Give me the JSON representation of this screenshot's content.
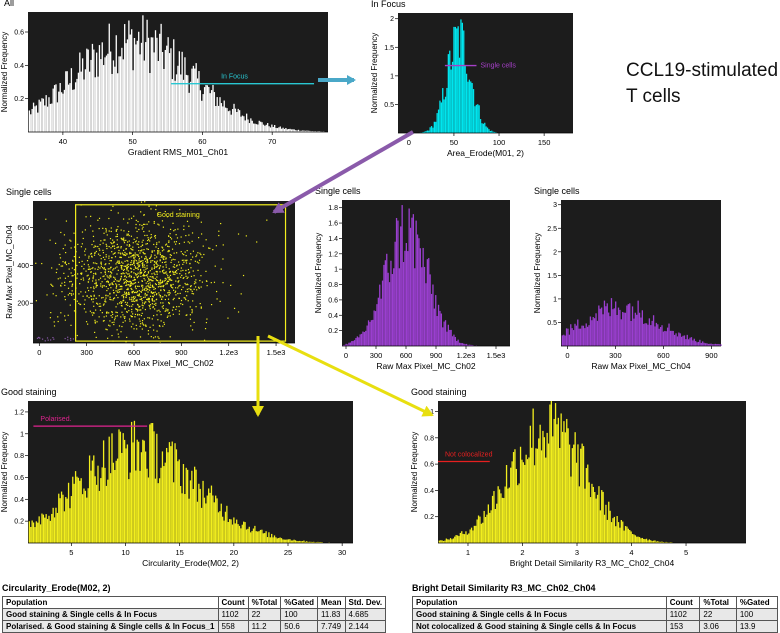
{
  "description": {
    "line1": "CCL19-stimulated",
    "line2": "T cells"
  },
  "chart_data": [
    {
      "id": "h1",
      "type": "histogram",
      "title": "All",
      "xlabel": "Gradient RMS_M01_Ch01",
      "ylabel": "Normalized Frequency",
      "xticks": [
        "40",
        "50",
        "60",
        "70"
      ],
      "xtick_values": [
        40,
        50,
        60,
        70
      ],
      "yticks": [
        "0.2",
        "0.4",
        "0.6"
      ],
      "ytick_values": [
        0.2,
        0.4,
        0.6
      ],
      "xlim": [
        35,
        78
      ],
      "ylim": [
        0,
        0.72
      ],
      "color": "#ffffff",
      "peak_x": 50,
      "peak_y": 0.66,
      "spread": 8.5,
      "gate": {
        "label": "In Focus",
        "x0": 55.5,
        "x1": 76,
        "y": 0.29,
        "color": "#29c7d2"
      }
    },
    {
      "id": "h2",
      "type": "histogram",
      "title": "In Focus",
      "xlabel": "Area_Erode(M01, 2)",
      "ylabel": "Normalized Frequency",
      "xticks": [
        "0",
        "50",
        "100",
        "150"
      ],
      "xtick_values": [
        0,
        50,
        100,
        150
      ],
      "yticks": [
        "0.5",
        "1",
        "1.5",
        "2"
      ],
      "ytick_values": [
        0.5,
        1,
        1.5,
        2
      ],
      "xlim": [
        -12,
        182
      ],
      "ylim": [
        0,
        2.1
      ],
      "color": "#00e5ee",
      "peak_x": 55,
      "peak_y": 2.0,
      "spread": 13,
      "gate": {
        "label": "Single cells",
        "x0": 40,
        "x1": 75,
        "y": 1.18,
        "color": "#a640c8"
      }
    },
    {
      "id": "s1",
      "type": "scatter",
      "title": "Single cells",
      "xlabel": "Raw Max Pixel_MC_Ch02",
      "ylabel": "Raw Max Pixel_MC_Ch04",
      "xticks": [
        "0",
        "300",
        "600",
        "900",
        "1.2e3",
        "1.5e3"
      ],
      "xtick_values": [
        0,
        300,
        600,
        900,
        1200,
        1500
      ],
      "yticks": [
        "200",
        "400",
        "600"
      ],
      "ytick_values": [
        200,
        400,
        600
      ],
      "xlim": [
        -40,
        1620
      ],
      "ylim": [
        -10,
        740
      ],
      "color": "#f2ee1e",
      "center_x": 600,
      "center_y": 340,
      "sd_x": 220,
      "sd_y": 150,
      "points": 1500,
      "gate": {
        "label": "Good staining",
        "x0": 230,
        "x1": 1560,
        "y0": 0,
        "y1": 720,
        "color": "#f2ee1e"
      }
    },
    {
      "id": "h3",
      "type": "histogram",
      "title": "Single cells",
      "xlabel": "Raw Max Pixel_MC_Ch02",
      "ylabel": "Normalized Frequency",
      "xticks": [
        "0",
        "300",
        "600",
        "900",
        "1.2e3",
        "1.5e3"
      ],
      "xtick_values": [
        0,
        300,
        600,
        900,
        1200,
        1500
      ],
      "yticks": [
        "0.2",
        "0.4",
        "0.6",
        "0.8",
        "1",
        "1.2",
        "1.4",
        "1.6",
        "1.8"
      ],
      "ytick_values": [
        0.2,
        0.4,
        0.6,
        0.8,
        1,
        1.2,
        1.4,
        1.6,
        1.8
      ],
      "xlim": [
        -40,
        1640
      ],
      "ylim": [
        0,
        1.9
      ],
      "color": "#9a3fcf",
      "peak_x": 600,
      "peak_y": 1.82,
      "spread": 210
    },
    {
      "id": "h4",
      "type": "histogram",
      "title": "Single cells",
      "xlabel": "Raw Max Pixel_MC_Ch04",
      "ylabel": "Normalized Frequency",
      "xticks": [
        "0",
        "300",
        "600",
        "900"
      ],
      "xtick_values": [
        0,
        300,
        600,
        900
      ],
      "yticks": [
        "0.5",
        "1",
        "1.5",
        "2",
        "2.5",
        "3"
      ],
      "ytick_values": [
        0.5,
        1,
        1.5,
        2,
        2.5,
        3
      ],
      "xlim": [
        -40,
        960
      ],
      "ylim": [
        0,
        3.1
      ],
      "color": "#9a3fcf",
      "peak_x": 330,
      "peak_y": 1.0,
      "spread": 240
    },
    {
      "id": "h5",
      "type": "histogram",
      "title": "Good staining",
      "xlabel": "Circularity_Erode(M02, 2)",
      "ylabel": "Normalized Frequency",
      "xticks": [
        "5",
        "10",
        "15",
        "20",
        "25",
        "30"
      ],
      "xtick_values": [
        5,
        10,
        15,
        20,
        25,
        30
      ],
      "yticks": [
        "0.2",
        "0.4",
        "0.6",
        "0.8",
        "1",
        "1.2"
      ],
      "ytick_values": [
        0.2,
        0.4,
        0.6,
        0.8,
        1,
        1.2
      ],
      "xlim": [
        1,
        31
      ],
      "ylim": [
        0,
        1.3
      ],
      "color": "#f2ee1e",
      "peak_x": 11,
      "peak_y": 1.05,
      "spread": 5.5,
      "gate": {
        "label": "Polarised.",
        "x0": 1.5,
        "x1": 12,
        "y": 1.07,
        "color": "#e0238f"
      }
    },
    {
      "id": "h6",
      "type": "histogram",
      "title": "Good staining",
      "xlabel": "Bright Detail Similarity R3_MC_Ch02_Ch04",
      "ylabel": "Normalized Frequency",
      "xticks": [
        "1",
        "2",
        "3",
        "4",
        "5"
      ],
      "xtick_values": [
        1,
        2,
        3,
        4,
        5
      ],
      "yticks": [
        "0.2",
        "0.4",
        "0.6",
        "0.8",
        "1"
      ],
      "ytick_values": [
        0.2,
        0.4,
        0.6,
        0.8,
        1
      ],
      "xlim": [
        0.45,
        6.1
      ],
      "ylim": [
        0,
        1.08
      ],
      "color": "#f2ee1e",
      "peak_x": 2.45,
      "peak_y": 1.05,
      "spread": 0.7,
      "gate": {
        "label": "Not colocalized",
        "x0": 0.45,
        "x1": 1.4,
        "y": 0.62,
        "color": "#e62020"
      }
    }
  ],
  "tables": {
    "left": {
      "title": "Circularity_Erode(M02, 2)",
      "headers": [
        "Population",
        "Count",
        "%Total",
        "%Gated",
        "Mean",
        "Std. Dev."
      ],
      "rows": [
        [
          "Good staining & Single cells & In Focus",
          "1102",
          "22",
          "100",
          "11.83",
          "4.685"
        ],
        [
          "Polarised. & Good staining & Single cells & In Focus_1",
          "558",
          "11.2",
          "50.6",
          "7.749",
          "2.144"
        ]
      ]
    },
    "right": {
      "title": "Bright Detail Similarity R3_MC_Ch02_Ch04",
      "headers": [
        "Population",
        "Count",
        "%Total",
        "%Gated"
      ],
      "rows": [
        [
          "Good staining & Single cells & In Focus",
          "1102",
          "22",
          "100"
        ],
        [
          "Not colocalized & Good staining & Single cells & In Focus",
          "153",
          "3.06",
          "13.9"
        ]
      ]
    }
  }
}
